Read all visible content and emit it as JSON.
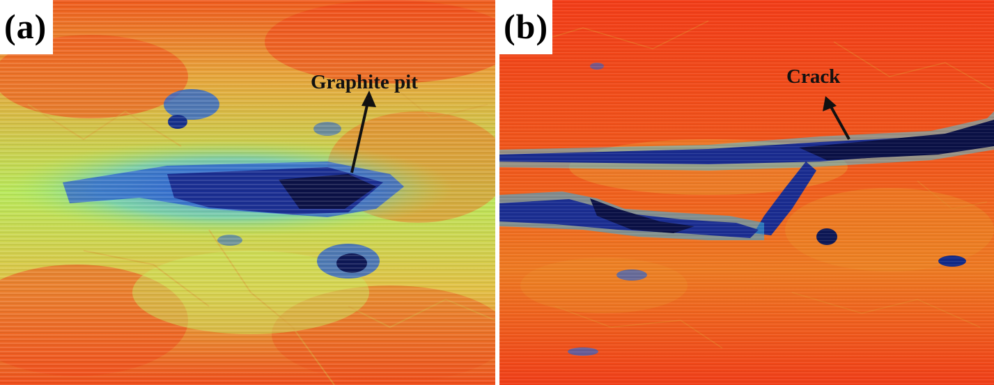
{
  "panels": [
    {
      "label": "(a)",
      "annotation": "Graphite pit"
    },
    {
      "label": "(b)",
      "annotation": "Crack"
    }
  ],
  "colors": {
    "background_hot": "#f24a1a",
    "mid_yellow": "#e9d646",
    "mid_green": "#a9ec5a",
    "cyan": "#4fd7d8",
    "deep_blue": "#1a2b8e",
    "dark_navy": "#0b1146"
  }
}
